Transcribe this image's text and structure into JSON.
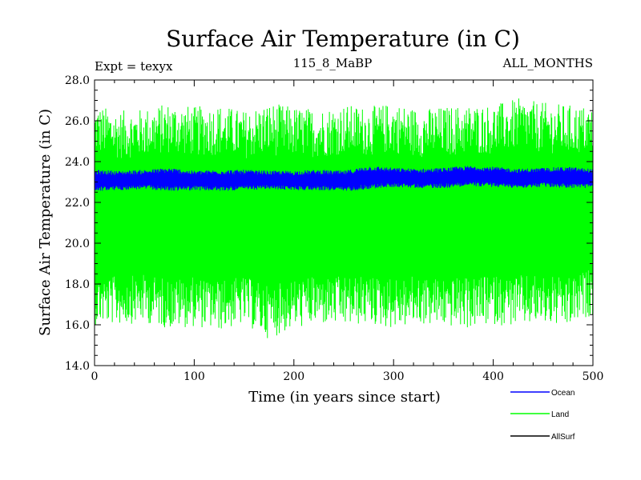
{
  "chart_data": {
    "type": "line",
    "title": "Surface Air Temperature (in C)",
    "subtitle_left": "Expt = texyx",
    "subtitle_center": "115_8_MaBP",
    "subtitle_right": "ALL_MONTHS",
    "xlabel": "Time (in years since start)",
    "ylabel": "Surface Air Temperature (in C)",
    "xlim": [
      0,
      500
    ],
    "ylim": [
      14.0,
      28.0
    ],
    "x_ticks": [
      0,
      100,
      200,
      300,
      400,
      500
    ],
    "y_ticks": [
      "14.0",
      "16.0",
      "18.0",
      "20.0",
      "22.0",
      "24.0",
      "26.0",
      "28.0"
    ],
    "grid": false,
    "legend_position": "bottom-right",
    "series": [
      {
        "name": "Ocean",
        "color": "#0000ff",
        "x": [
          0,
          25,
          50,
          75,
          100,
          125,
          150,
          175,
          200,
          225,
          250,
          275,
          300,
          325,
          350,
          375,
          400,
          425,
          450,
          475,
          500
        ],
        "low": [
          22.55,
          22.6,
          22.65,
          22.55,
          22.6,
          22.55,
          22.6,
          22.65,
          22.6,
          22.6,
          22.55,
          22.65,
          22.75,
          22.7,
          22.7,
          22.8,
          22.75,
          22.7,
          22.75,
          22.7,
          22.7
        ],
        "high": [
          23.6,
          23.55,
          23.6,
          23.7,
          23.55,
          23.6,
          23.6,
          23.55,
          23.55,
          23.6,
          23.55,
          23.8,
          23.7,
          23.65,
          23.7,
          23.8,
          23.75,
          23.65,
          23.7,
          23.75,
          23.65
        ]
      },
      {
        "name": "Land",
        "color": "#00ff00",
        "x": [
          0,
          25,
          50,
          75,
          100,
          125,
          150,
          175,
          200,
          225,
          250,
          275,
          300,
          325,
          350,
          375,
          400,
          425,
          450,
          475,
          500
        ],
        "low": [
          16.0,
          16.0,
          16.1,
          15.8,
          15.9,
          15.7,
          16.0,
          15.3,
          15.8,
          16.0,
          15.9,
          16.0,
          15.8,
          16.0,
          15.9,
          15.8,
          16.0,
          15.9,
          16.0,
          15.8,
          16.5
        ],
        "high": [
          26.8,
          26.5,
          26.6,
          26.9,
          26.7,
          26.8,
          26.5,
          26.9,
          26.7,
          26.6,
          26.8,
          26.7,
          26.9,
          26.6,
          26.7,
          26.8,
          26.8,
          27.1,
          26.9,
          26.8,
          26.7
        ]
      },
      {
        "name": "AllSurf",
        "color": "#000000",
        "x": [],
        "y": []
      }
    ]
  }
}
